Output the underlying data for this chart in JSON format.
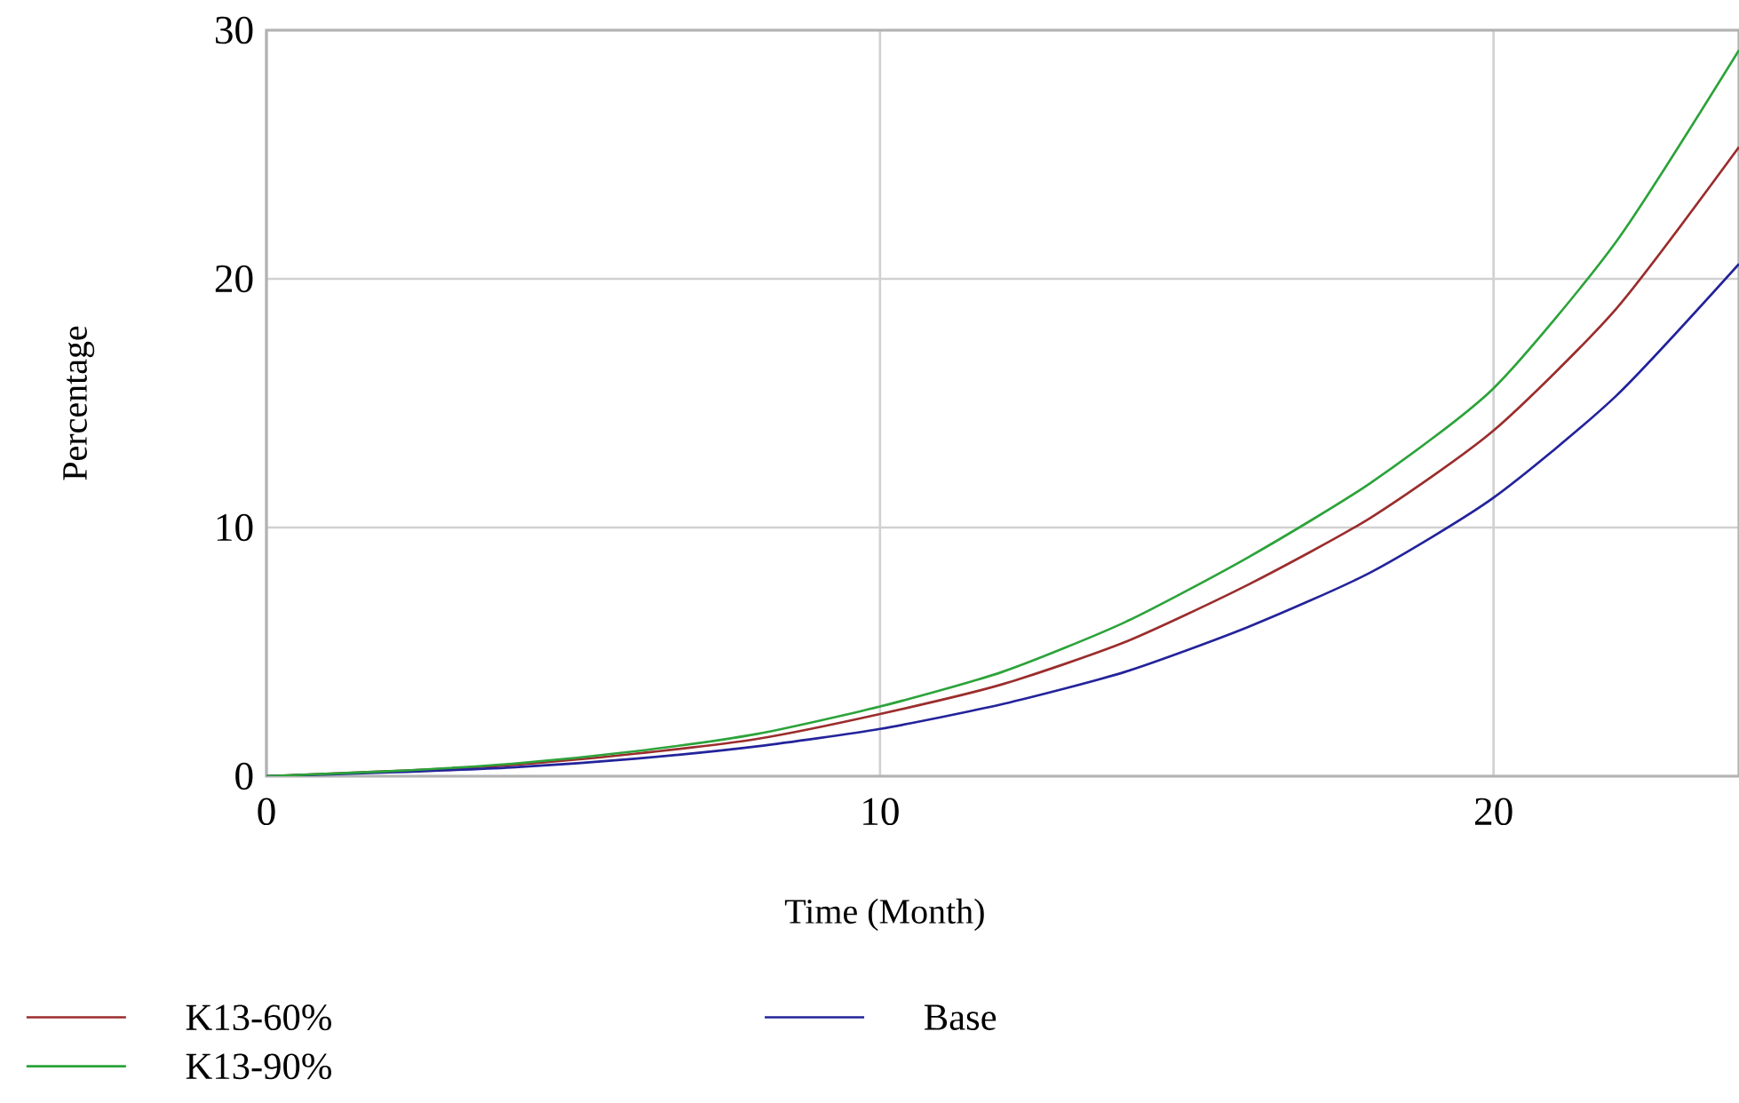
{
  "chart_data": {
    "type": "line",
    "xlabel": "Time (Month)",
    "ylabel": "Percentage",
    "x": [
      0,
      2,
      4,
      6,
      8,
      10,
      12,
      14,
      16,
      18,
      20,
      22,
      24
    ],
    "series": [
      {
        "name": "K13-60%",
        "color": "#9b2d2d",
        "values": [
          0,
          0.2,
          0.45,
          0.9,
          1.5,
          2.5,
          3.7,
          5.4,
          7.7,
          10.4,
          13.9,
          18.8,
          25.3
        ]
      },
      {
        "name": "Base",
        "color": "#23239b",
        "values": [
          0,
          0.15,
          0.35,
          0.7,
          1.2,
          1.9,
          2.9,
          4.2,
          6.0,
          8.2,
          11.2,
          15.3,
          20.6
        ]
      },
      {
        "name": "K13-90%",
        "color": "#2ca33a",
        "values": [
          0,
          0.2,
          0.5,
          1.0,
          1.7,
          2.8,
          4.2,
          6.2,
          8.8,
          11.8,
          15.6,
          21.5,
          29.2
        ]
      }
    ],
    "xlim": [
      0,
      24
    ],
    "ylim": [
      0,
      30
    ],
    "xticks": [
      0,
      10,
      20
    ],
    "yticks": [
      0,
      10,
      20,
      30
    ],
    "grid": true,
    "legend": "bottom"
  }
}
